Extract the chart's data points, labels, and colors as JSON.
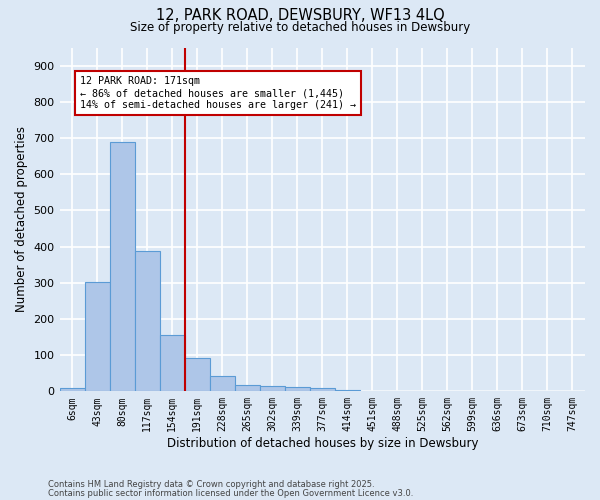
{
  "title_line1": "12, PARK ROAD, DEWSBURY, WF13 4LQ",
  "title_line2": "Size of property relative to detached houses in Dewsbury",
  "xlabel": "Distribution of detached houses by size in Dewsbury",
  "ylabel": "Number of detached properties",
  "categories": [
    "6sqm",
    "43sqm",
    "80sqm",
    "117sqm",
    "154sqm",
    "191sqm",
    "228sqm",
    "265sqm",
    "302sqm",
    "339sqm",
    "377sqm",
    "414sqm",
    "451sqm",
    "488sqm",
    "525sqm",
    "562sqm",
    "599sqm",
    "636sqm",
    "673sqm",
    "710sqm",
    "747sqm"
  ],
  "values": [
    8,
    302,
    688,
    388,
    157,
    93,
    42,
    18,
    14,
    12,
    10,
    3,
    0,
    0,
    0,
    0,
    0,
    0,
    0,
    0,
    0
  ],
  "bar_color": "#aec6e8",
  "bar_edge_color": "#5b9bd5",
  "bar_edge_width": 0.8,
  "vline_color": "#c00000",
  "annotation_line1": "12 PARK ROAD: 171sqm",
  "annotation_line2": "← 86% of detached houses are smaller (1,445)",
  "annotation_line3": "14% of semi-detached houses are larger (241) →",
  "annotation_box_color": "#c00000",
  "annotation_bg": "#ffffff",
  "background_color": "#dce8f5",
  "grid_color": "#ffffff",
  "ylim": [
    0,
    950
  ],
  "yticks": [
    0,
    100,
    200,
    300,
    400,
    500,
    600,
    700,
    800,
    900
  ],
  "footer_line1": "Contains HM Land Registry data © Crown copyright and database right 2025.",
  "footer_line2": "Contains public sector information licensed under the Open Government Licence v3.0."
}
